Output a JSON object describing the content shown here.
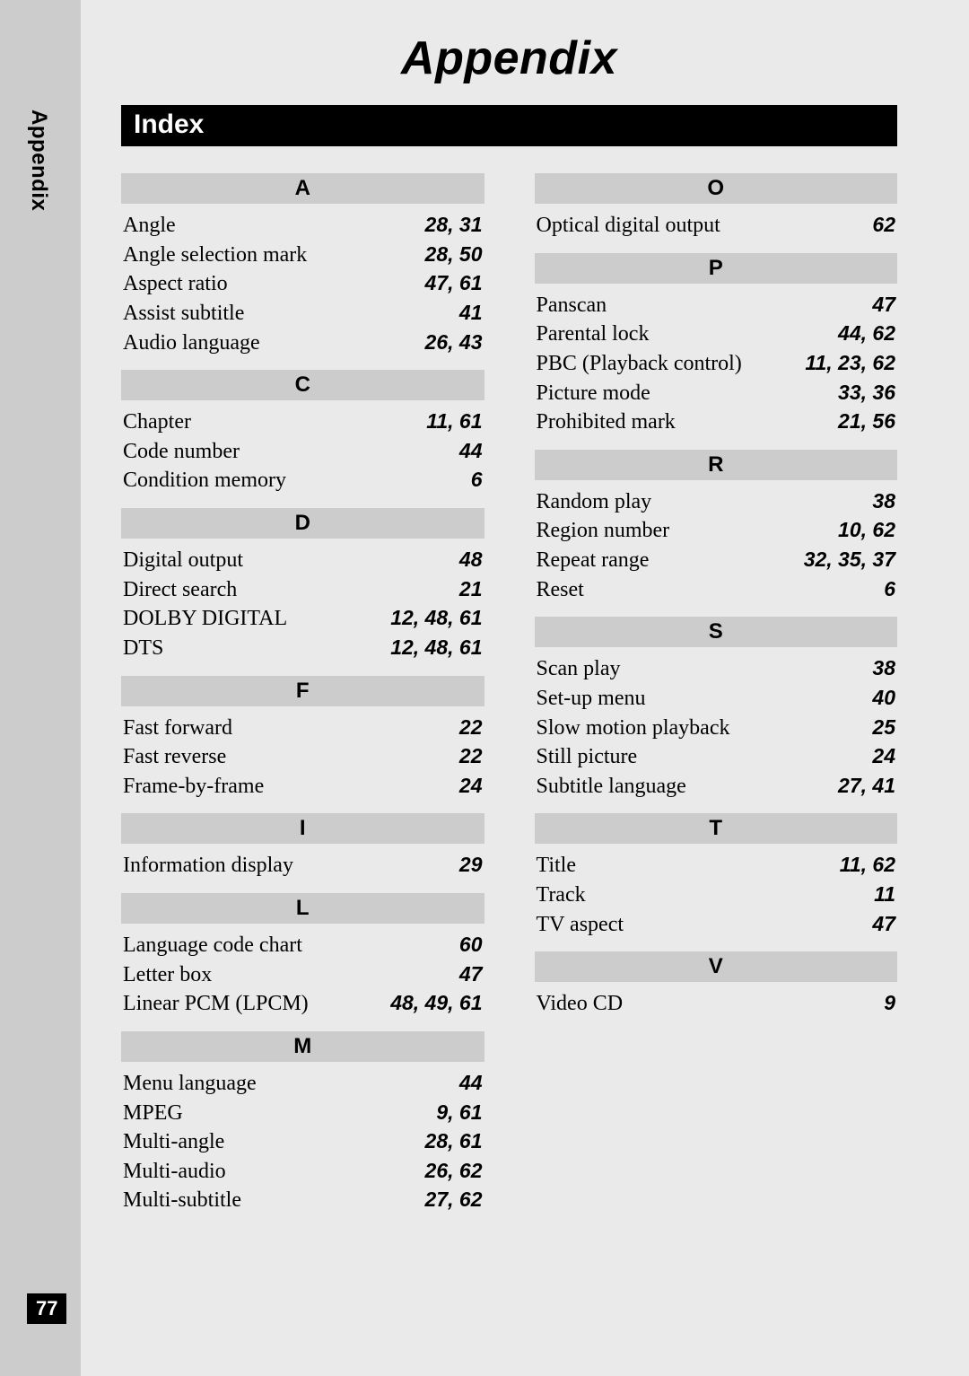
{
  "meta": {
    "page_number": "77",
    "sidebar_label": "Appendix"
  },
  "headings": {
    "title": "Appendix",
    "index_bar": "Index"
  },
  "styles": {
    "background_color": "#eaeaea",
    "sidebar_color": "#cccccc",
    "letter_head_bg": "#cccccc",
    "index_bar_bg": "#000000",
    "index_bar_fg": "#ffffff",
    "text_color": "#000000",
    "title_font": "Arial",
    "title_fontsize": 52,
    "title_weight": "bold",
    "title_style": "italic",
    "body_font": "Times New Roman",
    "body_fontsize": 24,
    "pages_font": "Arial",
    "pages_fontsize": 23,
    "pages_weight": "bold",
    "pages_style": "italic",
    "page_number_bg": "#000000",
    "page_number_fg": "#ffffff"
  },
  "index": {
    "left": [
      {
        "letter": "A",
        "entries": [
          {
            "term": "Angle",
            "pages": "28, 31"
          },
          {
            "term": "Angle selection mark",
            "pages": "28, 50"
          },
          {
            "term": "Aspect ratio",
            "pages": "47, 61"
          },
          {
            "term": "Assist subtitle",
            "pages": "41"
          },
          {
            "term": "Audio language",
            "pages": "26, 43"
          }
        ]
      },
      {
        "letter": "C",
        "entries": [
          {
            "term": "Chapter",
            "pages": "11, 61"
          },
          {
            "term": "Code number",
            "pages": "44"
          },
          {
            "term": "Condition memory",
            "pages": "6"
          }
        ]
      },
      {
        "letter": "D",
        "entries": [
          {
            "term": "Digital output",
            "pages": "48"
          },
          {
            "term": "Direct search",
            "pages": "21"
          },
          {
            "term": "DOLBY DIGITAL",
            "pages": "12, 48, 61"
          },
          {
            "term": "DTS",
            "pages": "12, 48, 61"
          }
        ]
      },
      {
        "letter": "F",
        "entries": [
          {
            "term": "Fast forward",
            "pages": "22"
          },
          {
            "term": "Fast reverse",
            "pages": "22"
          },
          {
            "term": "Frame-by-frame",
            "pages": "24"
          }
        ]
      },
      {
        "letter": "I",
        "entries": [
          {
            "term": "Information display",
            "pages": "29"
          }
        ]
      },
      {
        "letter": "L",
        "entries": [
          {
            "term": "Language code chart",
            "pages": "60"
          },
          {
            "term": "Letter box",
            "pages": "47"
          },
          {
            "term": "Linear PCM (LPCM)",
            "pages": "48, 49, 61"
          }
        ]
      },
      {
        "letter": "M",
        "entries": [
          {
            "term": "Menu language",
            "pages": "44"
          },
          {
            "term": "MPEG",
            "pages": "9, 61"
          },
          {
            "term": "Multi-angle",
            "pages": "28, 61"
          },
          {
            "term": "Multi-audio",
            "pages": "26, 62"
          },
          {
            "term": "Multi-subtitle",
            "pages": "27, 62"
          }
        ]
      }
    ],
    "right": [
      {
        "letter": "O",
        "entries": [
          {
            "term": "Optical digital output",
            "pages": "62"
          }
        ]
      },
      {
        "letter": "P",
        "entries": [
          {
            "term": "Panscan",
            "pages": "47"
          },
          {
            "term": "Parental lock",
            "pages": "44, 62"
          },
          {
            "term": "PBC (Playback control)",
            "pages": "11, 23, 62"
          },
          {
            "term": "Picture mode",
            "pages": "33, 36"
          },
          {
            "term": "Prohibited mark",
            "pages": "21, 56"
          }
        ]
      },
      {
        "letter": "R",
        "entries": [
          {
            "term": "Random play",
            "pages": "38"
          },
          {
            "term": "Region number",
            "pages": "10, 62"
          },
          {
            "term": "Repeat range",
            "pages": "32, 35, 37"
          },
          {
            "term": "Reset",
            "pages": "6"
          }
        ]
      },
      {
        "letter": "S",
        "entries": [
          {
            "term": "Scan play",
            "pages": "38"
          },
          {
            "term": "Set-up menu",
            "pages": "40"
          },
          {
            "term": "Slow motion playback",
            "pages": "25"
          },
          {
            "term": "Still picture",
            "pages": "24"
          },
          {
            "term": "Subtitle language",
            "pages": "27, 41"
          }
        ]
      },
      {
        "letter": "T",
        "entries": [
          {
            "term": "Title",
            "pages": "11, 62"
          },
          {
            "term": "Track",
            "pages": "11"
          },
          {
            "term": "TV aspect",
            "pages": "47"
          }
        ]
      },
      {
        "letter": "V",
        "entries": [
          {
            "term": "Video CD",
            "pages": "9"
          }
        ]
      }
    ]
  }
}
